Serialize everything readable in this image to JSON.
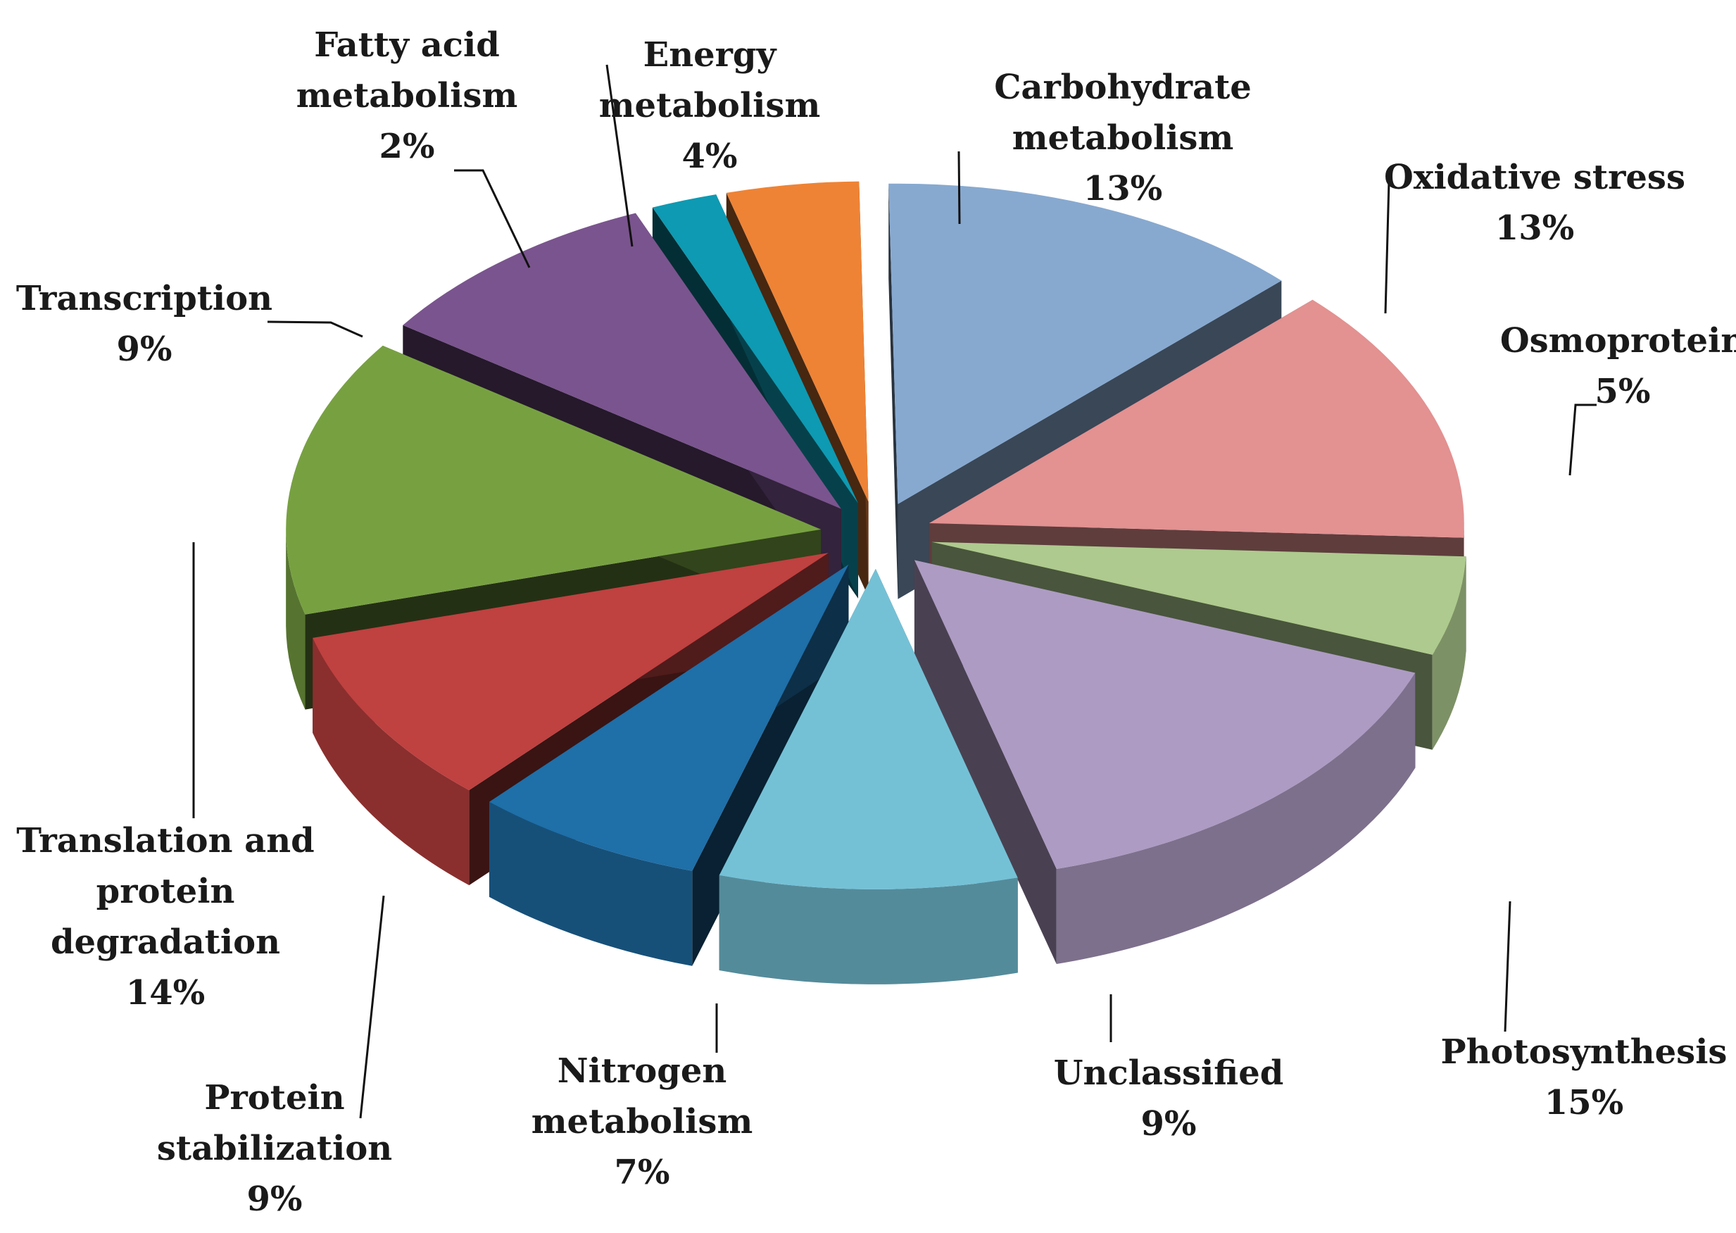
{
  "chart_data": {
    "type": "pie",
    "variant": "3d-exploded",
    "title": "",
    "slices": [
      {
        "name": "Carbohydrate metabolism",
        "label_lines": [
          "Carbohydrate",
          "metabolism"
        ],
        "percent_label": "13%",
        "value": 13,
        "color": "#87A9D0"
      },
      {
        "name": "Oxidative stress",
        "label_lines": [
          "Oxidative  stress"
        ],
        "percent_label": "13%",
        "value": 13,
        "color": "#E39191"
      },
      {
        "name": "Osmoprotein",
        "label_lines": [
          "Osmoprotein"
        ],
        "percent_label": "5%",
        "value": 5,
        "color": "#AECA8E"
      },
      {
        "name": "Photosynthesis",
        "label_lines": [
          "Photosynthesis"
        ],
        "percent_label": "15%",
        "value": 15,
        "color": "#AD9BC3"
      },
      {
        "name": "Unclassified",
        "label_lines": [
          "Unclassified"
        ],
        "percent_label": "9%",
        "value": 9,
        "color": "#74C1D6"
      },
      {
        "name": "Nitrogen metabolism",
        "label_lines": [
          "Nitrogen",
          "metabolism"
        ],
        "percent_label": "7%",
        "value": 7,
        "color": "#1F6FA8"
      },
      {
        "name": "Protein stabilization",
        "label_lines": [
          "Protein",
          "stabilization"
        ],
        "percent_label": "9%",
        "value": 9,
        "color": "#BF4140"
      },
      {
        "name": "Translation and protein degradation",
        "label_lines": [
          "Translation and",
          "protein",
          "degradation"
        ],
        "percent_label": "14%",
        "value": 14,
        "color": "#77A141"
      },
      {
        "name": "Transcription",
        "label_lines": [
          "Transcription"
        ],
        "percent_label": "9%",
        "value": 9,
        "color": "#7A548E"
      },
      {
        "name": "Fatty acid metabolism",
        "label_lines": [
          "Fatty acid",
          "metabolism"
        ],
        "percent_label": "2%",
        "value": 2,
        "color": "#0E9AB2"
      },
      {
        "name": "Energy metabolism",
        "label_lines": [
          "Energy",
          "metabolism"
        ],
        "percent_label": "4%",
        "value": 4,
        "color": "#EE8335"
      }
    ]
  }
}
